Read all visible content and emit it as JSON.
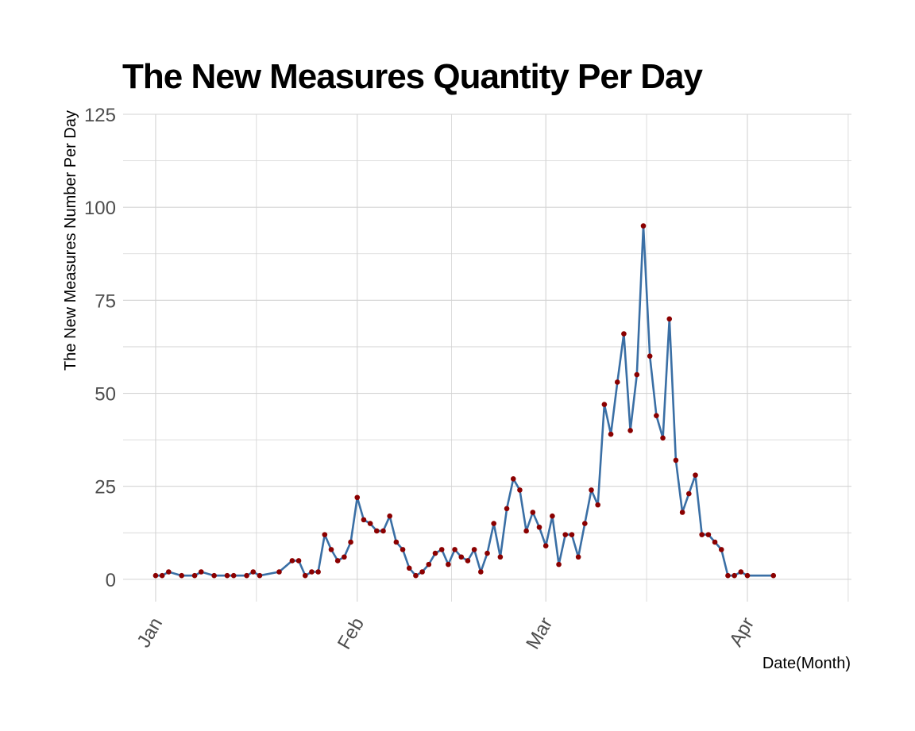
{
  "chart_data": {
    "type": "line",
    "title": "The New Measures Quantity Per Day",
    "xlabel": "Date(Month)",
    "ylabel": "The New Measures Number Per Day",
    "x_axis_type": "date",
    "x_ticks": [
      {
        "label": "Jan",
        "date": "2020-01-01"
      },
      {
        "label": "Feb",
        "date": "2020-02-01"
      },
      {
        "label": "Mar",
        "date": "2020-03-01"
      },
      {
        "label": "Apr",
        "date": "2020-04-01"
      }
    ],
    "xlim": [
      "2019-12-27",
      "2020-04-17"
    ],
    "ylim": [
      -6,
      125
    ],
    "y_ticks": [
      0,
      25,
      50,
      75,
      100,
      125
    ],
    "grid": true,
    "colors": {
      "line": "#3a6fa5",
      "points": "#8b0000",
      "grid": "#d3d3d3"
    },
    "series": [
      {
        "points": [
          {
            "x": "2020-01-01",
            "y": 1
          },
          {
            "x": "2020-01-02",
            "y": 1
          },
          {
            "x": "2020-01-03",
            "y": 2
          },
          {
            "x": "2020-01-05",
            "y": 1
          },
          {
            "x": "2020-01-07",
            "y": 1
          },
          {
            "x": "2020-01-08",
            "y": 2
          },
          {
            "x": "2020-01-10",
            "y": 1
          },
          {
            "x": "2020-01-12",
            "y": 1
          },
          {
            "x": "2020-01-13",
            "y": 1
          },
          {
            "x": "2020-01-15",
            "y": 1
          },
          {
            "x": "2020-01-16",
            "y": 2
          },
          {
            "x": "2020-01-17",
            "y": 1
          },
          {
            "x": "2020-01-20",
            "y": 2
          },
          {
            "x": "2020-01-22",
            "y": 5
          },
          {
            "x": "2020-01-23",
            "y": 5
          },
          {
            "x": "2020-01-24",
            "y": 1
          },
          {
            "x": "2020-01-25",
            "y": 2
          },
          {
            "x": "2020-01-26",
            "y": 2
          },
          {
            "x": "2020-01-27",
            "y": 12
          },
          {
            "x": "2020-01-28",
            "y": 8
          },
          {
            "x": "2020-01-29",
            "y": 5
          },
          {
            "x": "2020-01-30",
            "y": 6
          },
          {
            "x": "2020-01-31",
            "y": 10
          },
          {
            "x": "2020-02-01",
            "y": 22
          },
          {
            "x": "2020-02-02",
            "y": 16
          },
          {
            "x": "2020-02-03",
            "y": 15
          },
          {
            "x": "2020-02-04",
            "y": 13
          },
          {
            "x": "2020-02-05",
            "y": 13
          },
          {
            "x": "2020-02-06",
            "y": 17
          },
          {
            "x": "2020-02-07",
            "y": 10
          },
          {
            "x": "2020-02-08",
            "y": 8
          },
          {
            "x": "2020-02-09",
            "y": 3
          },
          {
            "x": "2020-02-10",
            "y": 1
          },
          {
            "x": "2020-02-11",
            "y": 2
          },
          {
            "x": "2020-02-12",
            "y": 4
          },
          {
            "x": "2020-02-13",
            "y": 7
          },
          {
            "x": "2020-02-14",
            "y": 8
          },
          {
            "x": "2020-02-15",
            "y": 4
          },
          {
            "x": "2020-02-16",
            "y": 8
          },
          {
            "x": "2020-02-17",
            "y": 6
          },
          {
            "x": "2020-02-18",
            "y": 5
          },
          {
            "x": "2020-02-19",
            "y": 8
          },
          {
            "x": "2020-02-20",
            "y": 2
          },
          {
            "x": "2020-02-21",
            "y": 7
          },
          {
            "x": "2020-02-22",
            "y": 15
          },
          {
            "x": "2020-02-23",
            "y": 6
          },
          {
            "x": "2020-02-24",
            "y": 19
          },
          {
            "x": "2020-02-25",
            "y": 27
          },
          {
            "x": "2020-02-26",
            "y": 24
          },
          {
            "x": "2020-02-27",
            "y": 13
          },
          {
            "x": "2020-02-28",
            "y": 18
          },
          {
            "x": "2020-02-29",
            "y": 14
          },
          {
            "x": "2020-03-01",
            "y": 9
          },
          {
            "x": "2020-03-02",
            "y": 17
          },
          {
            "x": "2020-03-03",
            "y": 4
          },
          {
            "x": "2020-03-04",
            "y": 12
          },
          {
            "x": "2020-03-05",
            "y": 12
          },
          {
            "x": "2020-03-06",
            "y": 6
          },
          {
            "x": "2020-03-07",
            "y": 15
          },
          {
            "x": "2020-03-08",
            "y": 24
          },
          {
            "x": "2020-03-09",
            "y": 20
          },
          {
            "x": "2020-03-10",
            "y": 47
          },
          {
            "x": "2020-03-11",
            "y": 39
          },
          {
            "x": "2020-03-12",
            "y": 53
          },
          {
            "x": "2020-03-13",
            "y": 66
          },
          {
            "x": "2020-03-14",
            "y": 40
          },
          {
            "x": "2020-03-15",
            "y": 55
          },
          {
            "x": "2020-03-16",
            "y": 95
          },
          {
            "x": "2020-03-17",
            "y": 60
          },
          {
            "x": "2020-03-18",
            "y": 44
          },
          {
            "x": "2020-03-19",
            "y": 38
          },
          {
            "x": "2020-03-20",
            "y": 70
          },
          {
            "x": "2020-03-21",
            "y": 32
          },
          {
            "x": "2020-03-22",
            "y": 18
          },
          {
            "x": "2020-03-23",
            "y": 23
          },
          {
            "x": "2020-03-24",
            "y": 28
          },
          {
            "x": "2020-03-25",
            "y": 12
          },
          {
            "x": "2020-03-26",
            "y": 12
          },
          {
            "x": "2020-03-27",
            "y": 10
          },
          {
            "x": "2020-03-28",
            "y": 8
          },
          {
            "x": "2020-03-29",
            "y": 1
          },
          {
            "x": "2020-03-30",
            "y": 1
          },
          {
            "x": "2020-03-31",
            "y": 2
          },
          {
            "x": "2020-04-01",
            "y": 1
          },
          {
            "x": "2020-04-05",
            "y": 1
          }
        ]
      }
    ]
  }
}
